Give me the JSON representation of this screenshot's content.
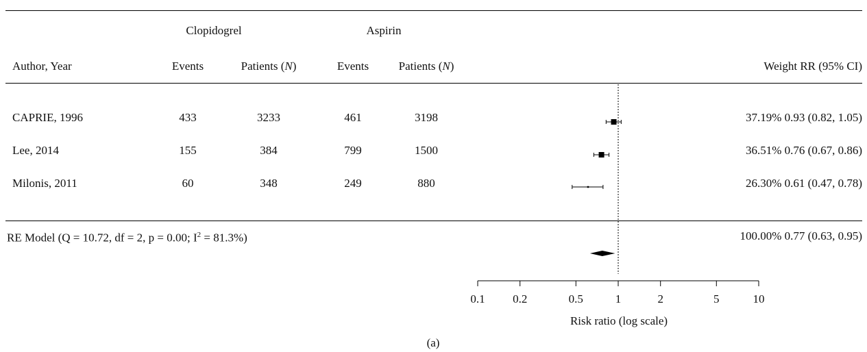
{
  "chart_data": {
    "type": "forest",
    "headers": {
      "group1": "Clopidogrel",
      "group2": "Aspirin",
      "author_year": "Author, Year",
      "events": "Events",
      "patients_prefix": "Patients (",
      "patients_N": "N",
      "patients_suffix": ")",
      "weight_rr": "Weight RR (95% CI)"
    },
    "studies": [
      {
        "label": "CAPRIE, 1996",
        "clop_events": "433",
        "clop_patients": "3233",
        "asp_events": "461",
        "asp_patients": "3198",
        "weight": "37.19%",
        "rr": 0.93,
        "lower": 0.82,
        "upper": 1.05,
        "rr_text": "37.19% 0.93 (0.82, 1.05)"
      },
      {
        "label": "Lee, 2014",
        "clop_events": "155",
        "clop_patients": "384",
        "asp_events": "799",
        "asp_patients": "1500",
        "weight": "36.51%",
        "rr": 0.76,
        "lower": 0.67,
        "upper": 0.86,
        "rr_text": "36.51% 0.76 (0.67, 0.86)"
      },
      {
        "label": "Milonis, 2011",
        "clop_events": "60",
        "clop_patients": "348",
        "asp_events": "249",
        "asp_patients": "880",
        "weight": "26.30%",
        "rr": 0.61,
        "lower": 0.47,
        "upper": 0.78,
        "rr_text": "26.30% 0.61 (0.47, 0.78)"
      }
    ],
    "summary": {
      "label_prefix": "RE Model (Q = 10.72, df = 2, p = 0.00; I",
      "label_sup": "2",
      "label_suffix": " = 81.3%)",
      "rr": 0.77,
      "lower": 0.63,
      "upper": 0.95,
      "rr_text": "100.00% 0.77 (0.63, 0.95)"
    },
    "x_axis": {
      "label": "Risk ratio (log scale)",
      "scale": "log",
      "ticks": [
        0.1,
        0.2,
        0.5,
        1,
        2,
        5,
        10
      ],
      "tick_labels": [
        "0.1",
        "0.2",
        "0.5",
        "1",
        "2",
        "5",
        "10"
      ],
      "range": [
        0.1,
        10
      ],
      "reference_line": 1
    },
    "caption": "(a)"
  }
}
